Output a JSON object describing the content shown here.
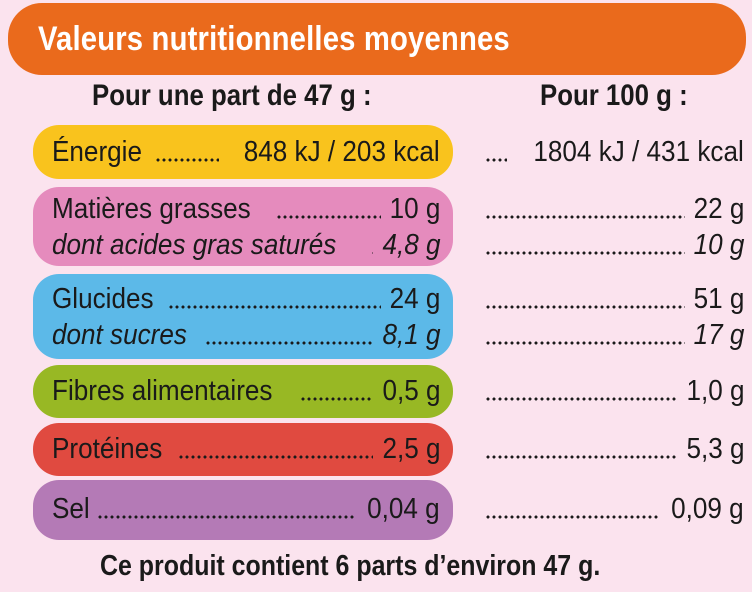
{
  "title": "Valeurs nutritionnelles moyennes",
  "headers": {
    "per_portion": "Pour une part de 47 g :",
    "per_100g": "Pour 100 g :"
  },
  "colors": {
    "title": "#ea6a1c",
    "energie": "#f9c31d",
    "matieres": "#e58bbd",
    "glucides": "#5cb9e8",
    "fibres": "#98b824",
    "proteines": "#e04a40",
    "sel": "#b47ab6",
    "background": "#fbe3ee"
  },
  "rows": {
    "energie": {
      "label": "Énergie",
      "per_portion": "848 kJ / 203 kcal",
      "per_100g": "1804 kJ / 431 kcal"
    },
    "matieres_grasses": {
      "label": "Matières grasses",
      "per_portion": "10 g",
      "per_100g": "22 g"
    },
    "ags": {
      "label": "dont acides gras saturés",
      "per_portion": "4,8 g",
      "per_100g": "10 g"
    },
    "glucides": {
      "label": "Glucides",
      "per_portion": "24 g",
      "per_100g": "51 g"
    },
    "sucres": {
      "label": "dont sucres",
      "per_portion": "8,1 g",
      "per_100g": "17 g"
    },
    "fibres": {
      "label": "Fibres alimentaires",
      "per_portion": "0,5 g",
      "per_100g": "1,0 g"
    },
    "proteines": {
      "label": "Protéines",
      "per_portion": "2,5 g",
      "per_100g": "5,3 g"
    },
    "sel": {
      "label": "Sel",
      "per_portion": "0,04 g",
      "per_100g": "0,09 g"
    }
  },
  "footer": "Ce produit contient 6 parts d’environ 47 g."
}
